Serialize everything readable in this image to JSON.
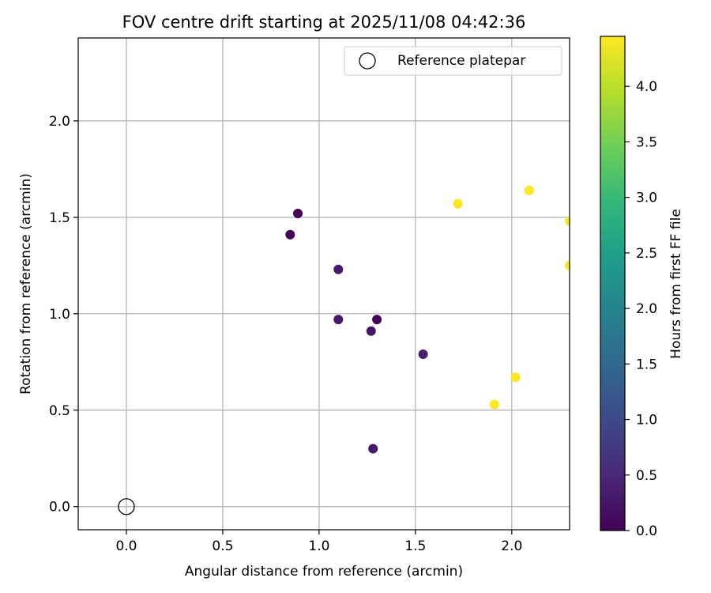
{
  "chart_data": {
    "type": "scatter",
    "title": "FOV centre drift starting at 2025/11/08 04:42:36",
    "xlabel": "Angular distance from reference (arcmin)",
    "ylabel": "Rotation from reference (arcmin)",
    "xlim": [
      -0.25,
      2.3
    ],
    "ylim": [
      -0.12,
      2.43
    ],
    "xticks": [
      0.0,
      0.5,
      1.0,
      1.5,
      2.0
    ],
    "xtick_labels": [
      "0.0",
      "0.5",
      "1.0",
      "1.5",
      "2.0"
    ],
    "yticks": [
      0.0,
      0.5,
      1.0,
      1.5,
      2.0
    ],
    "ytick_labels": [
      "0.0",
      "0.5",
      "1.0",
      "1.5",
      "2.0"
    ],
    "grid": true,
    "legend": {
      "position": "top-right",
      "entries": [
        "Reference platepar"
      ]
    },
    "reference_point": {
      "x": 0.0,
      "y": 0.0,
      "label": "Reference platepar"
    },
    "points": [
      {
        "x": 0.89,
        "y": 1.52,
        "hours": 0.0
      },
      {
        "x": 0.85,
        "y": 1.41,
        "hours": 0.05
      },
      {
        "x": 1.1,
        "y": 1.23,
        "hours": 0.3
      },
      {
        "x": 1.1,
        "y": 0.97,
        "hours": 0.3
      },
      {
        "x": 1.27,
        "y": 0.91,
        "hours": 0.25
      },
      {
        "x": 1.3,
        "y": 0.97,
        "hours": 0.05
      },
      {
        "x": 1.54,
        "y": 0.79,
        "hours": 0.4
      },
      {
        "x": 1.28,
        "y": 0.3,
        "hours": 0.3
      },
      {
        "x": 1.72,
        "y": 1.57,
        "hours": 4.45
      },
      {
        "x": 2.09,
        "y": 1.64,
        "hours": 4.45
      },
      {
        "x": 2.3,
        "y": 1.48,
        "hours": 4.45
      },
      {
        "x": 2.3,
        "y": 1.25,
        "hours": 4.45
      },
      {
        "x": 2.02,
        "y": 0.67,
        "hours": 4.45
      },
      {
        "x": 1.91,
        "y": 0.53,
        "hours": 4.45
      }
    ],
    "colorbar": {
      "label": "Hours from first FF file",
      "range": [
        0.0,
        4.45
      ],
      "ticks": [
        0.0,
        0.5,
        1.0,
        1.5,
        2.0,
        2.5,
        3.0,
        3.5,
        4.0
      ],
      "tick_labels": [
        "0.0",
        "0.5",
        "1.0",
        "1.5",
        "2.0",
        "2.5",
        "3.0",
        "3.5",
        "4.0"
      ],
      "colormap": [
        "#440154",
        "#482878",
        "#3e4989",
        "#31688e",
        "#26828e",
        "#1f9e89",
        "#35b779",
        "#6ece58",
        "#b5de2b",
        "#fde725"
      ]
    }
  }
}
